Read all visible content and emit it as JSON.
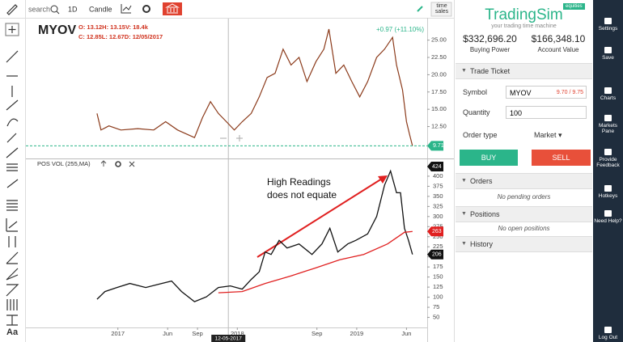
{
  "toolbar": {
    "search": "search",
    "interval": "1D",
    "chart_style": "Candle",
    "time_sales": "time sales"
  },
  "chart": {
    "symbol": "MYOV",
    "ohlc_line_1": "O: 13.12H: 13.15V: 18.4k",
    "ohlc_line_2": "C: 12.85L: 12.67D: 12/05/2017",
    "change": "+0.97 (+11.10%)",
    "last_price": 9.71,
    "last_price_color": "#2bb58a",
    "xlim": [
      -9,
      31
    ],
    "xticks": [
      {
        "value": 0,
        "label": "2017"
      },
      {
        "value": 5,
        "label": "Jun"
      },
      {
        "value": 8,
        "label": "Sep"
      },
      {
        "value": 12,
        "label": "2018"
      },
      {
        "value": 20,
        "label": "Sep"
      },
      {
        "value": 24,
        "label": "2019"
      },
      {
        "value": 29,
        "label": "Jun"
      }
    ],
    "crosshair": {
      "x": 11.1,
      "label": "12-05-2017"
    },
    "ylim": [
      8,
      28
    ],
    "yticks": [
      {
        "value": 12.5,
        "label": "12.50"
      },
      {
        "value": 15,
        "label": "15.00"
      },
      {
        "value": 17.5,
        "label": "17.50"
      },
      {
        "value": 20,
        "label": "20.00"
      },
      {
        "value": 22.5,
        "label": "22.50"
      },
      {
        "value": 25,
        "label": "25.00"
      }
    ],
    "price": {
      "color": "#8b3a1a",
      "x": [
        -2.1,
        -1.7,
        -0.9,
        0.3,
        2.0,
        3.6,
        4.8,
        6.0,
        7.7,
        8.5,
        9.3,
        10.1,
        10.9,
        11.7,
        12.5,
        13.4,
        14.2,
        15.0,
        15.8,
        16.6,
        17.4,
        18.2,
        19.0,
        19.9,
        20.7,
        21.2,
        21.9,
        22.7,
        23.5,
        24.3,
        25.1,
        26.0,
        26.8,
        27.6,
        28.0,
        28.6,
        29.0,
        29.3,
        29.6
      ],
      "values": [
        14.4,
        12.0,
        12.6,
        12.0,
        12.2,
        12.0,
        13.2,
        12.0,
        10.9,
        13.8,
        16.1,
        14.4,
        13.2,
        12.0,
        13.2,
        14.4,
        16.8,
        19.6,
        20.2,
        23.7,
        21.4,
        22.5,
        19.0,
        21.9,
        23.7,
        26.6,
        20.2,
        21.4,
        19.0,
        16.8,
        19.0,
        22.5,
        23.7,
        25.4,
        21.4,
        17.8,
        13.2,
        11.4,
        9.71
      ]
    },
    "indicator": {
      "name": "POS VOL (255,MA)",
      "ylim": [
        27,
        440
      ],
      "yticks": [
        50,
        75,
        100,
        125,
        150,
        175,
        200,
        225,
        250,
        275,
        300,
        325,
        350,
        375,
        400
      ],
      "series": [
        {
          "color": "#111111",
          "x": [
            -2.1,
            -1.3,
            -0.1,
            1.2,
            2.8,
            4.4,
            5.4,
            6.4,
            7.7,
            8.9,
            10.1,
            11.3,
            12.5,
            13.4,
            14.2,
            14.8,
            15.4,
            16.2,
            17.0,
            18.2,
            19.5,
            20.5,
            21.3,
            22.1,
            23.1,
            23.9,
            25.1,
            26.0,
            26.8,
            27.4,
            28.0,
            28.4,
            28.8,
            29.2,
            29.6
          ],
          "values": [
            95,
            114,
            124,
            134,
            124,
            134,
            140,
            114,
            89,
            101,
            124,
            128,
            120,
            144,
            163,
            212,
            206,
            241,
            222,
            232,
            206,
            232,
            271,
            212,
            232,
            241,
            257,
            300,
            378,
            413,
            359,
            359,
            271,
            241,
            206
          ]
        },
        {
          "color": "#e02020",
          "x": [
            10.1,
            12.5,
            14.8,
            17.4,
            19.9,
            22.3,
            24.7,
            27.1,
            28.8,
            29.6
          ],
          "values": [
            111,
            114,
            134,
            153,
            173,
            193,
            206,
            232,
            261,
            263
          ]
        }
      ],
      "tags": [
        {
          "value": 424,
          "color": "#111111"
        },
        {
          "value": 263,
          "color": "#e02020"
        },
        {
          "value": 206,
          "color": "#111111"
        }
      ]
    },
    "annotation": [
      "High Readings",
      "does not equate"
    ]
  },
  "panel": {
    "brand": "TradingSim",
    "badge": "equities",
    "tagline": "your trading time machine",
    "buying_power": "$332,696.20",
    "buying_power_label": "Buying Power",
    "account_value": "$166,348.10",
    "account_value_label": "Account Value",
    "trade_ticket": "Trade Ticket",
    "symbol_label": "Symbol",
    "symbol": "MYOV",
    "quote": "9.70 / 9.75",
    "quantity_label": "Quantity",
    "quantity": "100",
    "order_type_label": "Order type",
    "order_type": "Market ▾",
    "buy": "BUY",
    "sell": "SELL",
    "orders": "Orders",
    "orders_empty": "No pending orders",
    "positions": "Positions",
    "positions_empty": "No open positions",
    "history": "History"
  },
  "sidebar": [
    "Settings",
    "Save",
    "Charts",
    "Markets Pane",
    "Provide Feedback",
    "Hotkeys",
    "Need Help?",
    "Log Out"
  ]
}
